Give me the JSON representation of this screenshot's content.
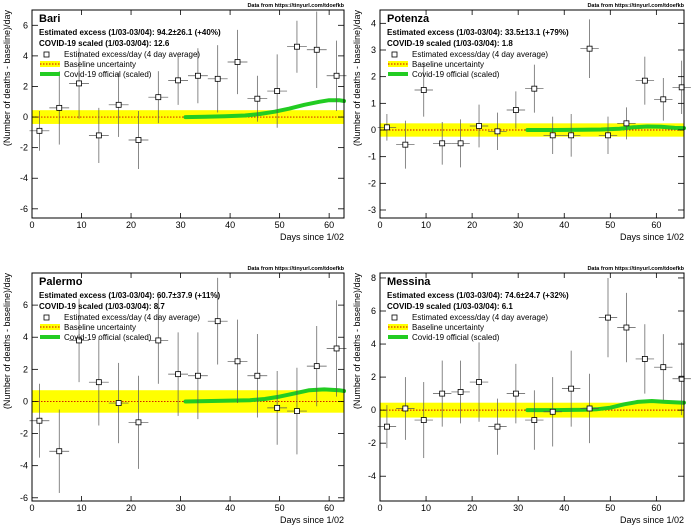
{
  "source_note": "Data from https://tinyurl.com/tdoefkb",
  "xlabel": "Days since 1/02",
  "ylabel": "(Number of deaths - baseline)/day",
  "legend": {
    "points": "Estimated excess/day (4 day average)",
    "baseline": "Baseline uncertainty",
    "official": "Covid-19 official (scaled)"
  },
  "colors": {
    "band": "#ffff00",
    "baseline_line": "#cc0000",
    "official": "#22cc22",
    "points": "#000000"
  },
  "chart_data": [
    {
      "type": "scatter",
      "title": "Bari",
      "excess_text": "Estimated excess (1/03-03/04): 94.2±26.1 (+40%)",
      "scaled_text": "COVID-19 scaled (1/03-03/04): 12.6",
      "xlim": [
        0,
        63
      ],
      "ylim": [
        -6.6,
        7
      ],
      "xticks": [
        0,
        10,
        20,
        30,
        40,
        50,
        60
      ],
      "yticks": [
        -6,
        -4,
        -2,
        0,
        2,
        4,
        6
      ],
      "band": [
        -0.45,
        0.45
      ],
      "points": {
        "x": [
          1.5,
          5.5,
          9.5,
          13.5,
          17.5,
          21.5,
          25.5,
          29.5,
          33.5,
          37.5,
          41.5,
          45.5,
          49.5,
          53.5,
          57.5,
          61.5
        ],
        "y": [
          -0.9,
          0.6,
          2.2,
          -1.2,
          0.8,
          -1.5,
          1.3,
          2.4,
          2.7,
          2.5,
          3.6,
          1.2,
          1.7,
          4.6,
          4.4,
          2.7
        ],
        "err": [
          1.3,
          2.4,
          2.3,
          1.8,
          2.1,
          1.9,
          1.7,
          1.6,
          1.8,
          2.2,
          2.1,
          1.5,
          2.4,
          1.7,
          2.5,
          2.3
        ]
      },
      "official": {
        "x": [
          31,
          35,
          39,
          43,
          46,
          49,
          52,
          55,
          58,
          60,
          62,
          63
        ],
        "y": [
          0.0,
          0.02,
          0.05,
          0.1,
          0.2,
          0.35,
          0.55,
          0.8,
          1.0,
          1.1,
          1.1,
          1.05
        ]
      }
    },
    {
      "type": "scatter",
      "title": "Potenza",
      "excess_text": "Estimated excess (1/03-03/04): 33.5±13.1 (+79%)",
      "scaled_text": "COVID-19 scaled (1/03-03/04): 1.8",
      "xlim": [
        0,
        66
      ],
      "ylim": [
        -3.3,
        4.5
      ],
      "xticks": [
        0,
        10,
        20,
        30,
        40,
        50,
        60
      ],
      "yticks": [
        -3,
        -2,
        -1,
        0,
        1,
        2,
        3,
        4
      ],
      "band": [
        -0.25,
        0.25
      ],
      "points": {
        "x": [
          1.5,
          5.5,
          9.5,
          13.5,
          17.5,
          21.5,
          25.5,
          29.5,
          33.5,
          37.5,
          41.5,
          45.5,
          49.5,
          53.5,
          57.5,
          61.5,
          65.5
        ],
        "y": [
          0.1,
          -0.55,
          1.5,
          -0.5,
          -0.5,
          0.15,
          -0.05,
          0.75,
          1.55,
          -0.2,
          -0.2,
          3.05,
          -0.2,
          0.25,
          1.85,
          1.15,
          1.6
        ],
        "err": [
          0.5,
          0.9,
          1.0,
          0.8,
          0.9,
          0.8,
          0.7,
          0.7,
          0.9,
          0.7,
          0.8,
          1.1,
          0.7,
          0.6,
          0.9,
          0.8,
          1.0
        ]
      },
      "official": {
        "x": [
          32,
          38,
          44,
          48,
          52,
          55,
          58,
          61,
          64,
          66
        ],
        "y": [
          0.0,
          0.0,
          0.01,
          0.02,
          0.05,
          0.1,
          0.13,
          0.12,
          0.08,
          0.07
        ]
      }
    },
    {
      "type": "scatter",
      "title": "Palermo",
      "excess_text": "Estimated excess (1/03-03/04): 60.7±37.9 (+11%)",
      "scaled_text": "COVID-19 scaled (1/03-03/04): 8.7",
      "xlim": [
        0,
        63
      ],
      "ylim": [
        -6.2,
        8
      ],
      "xticks": [
        0,
        10,
        20,
        30,
        40,
        50,
        60
      ],
      "yticks": [
        -6,
        -4,
        -2,
        0,
        2,
        4,
        6
      ],
      "band": [
        -0.7,
        0.7
      ],
      "points": {
        "x": [
          1.5,
          5.5,
          9.5,
          13.5,
          17.5,
          21.5,
          25.5,
          29.5,
          33.5,
          37.5,
          41.5,
          45.5,
          49.5,
          53.5,
          57.5,
          61.5
        ],
        "y": [
          -1.2,
          -3.1,
          3.8,
          1.2,
          -0.1,
          -1.3,
          3.8,
          1.7,
          1.6,
          5.0,
          2.5,
          1.6,
          -0.4,
          -0.6,
          2.2,
          3.3
        ],
        "err": [
          2.3,
          2.6,
          2.6,
          2.7,
          2.5,
          2.9,
          2.7,
          2.6,
          2.7,
          2.7,
          2.6,
          2.6,
          2.3,
          2.7,
          2.5,
          3.0
        ]
      },
      "official": {
        "x": [
          31,
          35,
          40,
          44,
          47,
          50,
          53,
          56,
          59,
          62,
          63
        ],
        "y": [
          0.0,
          0.02,
          0.05,
          0.08,
          0.15,
          0.3,
          0.5,
          0.7,
          0.75,
          0.7,
          0.65
        ]
      }
    },
    {
      "type": "scatter",
      "title": "Messina",
      "excess_text": "Estimated excess (1/03-03/04): 74.6±24.7 (+32%)",
      "scaled_text": "COVID-19 scaled (1/03-03/04): 6.1",
      "xlim": [
        0,
        66
      ],
      "ylim": [
        -5.5,
        8.3
      ],
      "xticks": [
        0,
        10,
        20,
        30,
        40,
        50,
        60
      ],
      "yticks": [
        -4,
        -2,
        0,
        2,
        4,
        6,
        8
      ],
      "band": [
        -0.45,
        0.45
      ],
      "points": {
        "x": [
          1.5,
          5.5,
          9.5,
          13.5,
          17.5,
          21.5,
          25.5,
          29.5,
          33.5,
          37.5,
          41.5,
          45.5,
          49.5,
          53.5,
          57.5,
          61.5,
          65.5
        ],
        "y": [
          -1.0,
          0.1,
          -0.6,
          1.0,
          1.1,
          1.7,
          -1.0,
          1.0,
          -0.6,
          -0.1,
          1.3,
          0.1,
          5.6,
          5.0,
          3.1,
          2.6,
          1.9
        ],
        "err": [
          1.3,
          1.9,
          2.3,
          2.0,
          1.9,
          2.4,
          1.7,
          1.8,
          1.8,
          2.1,
          2.3,
          2.1,
          2.4,
          2.1,
          2.1,
          2.0,
          2.2
        ]
      },
      "official": {
        "x": [
          32,
          38,
          44,
          47,
          50,
          53,
          56,
          59,
          62,
          66
        ],
        "y": [
          0.0,
          0.0,
          0.02,
          0.05,
          0.15,
          0.35,
          0.5,
          0.55,
          0.5,
          0.45
        ]
      }
    }
  ]
}
